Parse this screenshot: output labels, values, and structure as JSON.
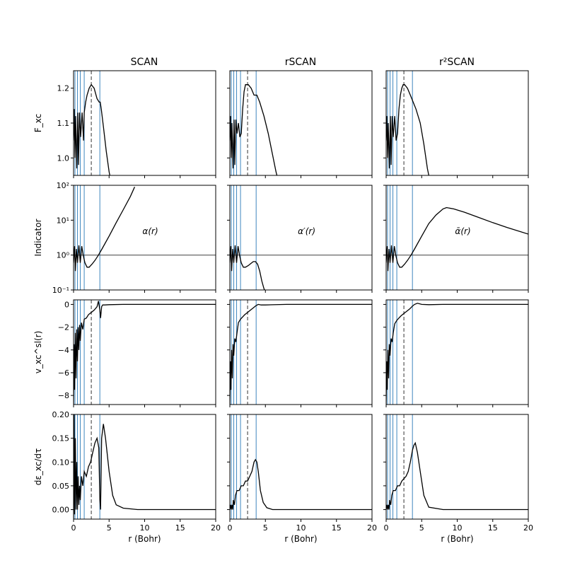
{
  "chart_data": {
    "type": "line",
    "columns": [
      "SCAN",
      "rSCAN",
      "r²SCAN"
    ],
    "shared_xlabel": "r (Bohr)",
    "xlim": [
      0,
      20
    ],
    "xticks": [
      0,
      5,
      10,
      15,
      20
    ],
    "dashed_marker_x": 2.5,
    "shell_lines_x": [
      0.2,
      0.55,
      0.95,
      1.5,
      3.7
    ],
    "rows": [
      {
        "ylabel": "F_xc",
        "ylim": [
          0.95,
          1.25
        ],
        "yticks": [
          {
            "v": 1.0,
            "label": "1.0"
          },
          {
            "v": 1.1,
            "label": "1.1"
          },
          {
            "v": 1.2,
            "label": "1.2"
          }
        ],
        "series": [
          {
            "name": "SCAN",
            "x": [
              0.0,
              0.1,
              0.2,
              0.3,
              0.45,
              0.6,
              0.7,
              0.85,
              1.0,
              1.2,
              1.4,
              1.5,
              1.7,
              1.9,
              2.2,
              2.5,
              2.9,
              3.3,
              3.6,
              3.75,
              3.9,
              4.2,
              4.6,
              5.0,
              5.3
            ],
            "y": [
              1.05,
              1.14,
              1.0,
              1.12,
              0.97,
              1.13,
              0.98,
              1.13,
              1.06,
              1.13,
              1.05,
              1.13,
              1.16,
              1.18,
              1.2,
              1.21,
              1.2,
              1.17,
              1.16,
              1.16,
              1.14,
              1.09,
              1.02,
              0.96,
              0.93
            ]
          },
          {
            "name": "rSCAN",
            "x": [
              0.0,
              0.1,
              0.2,
              0.3,
              0.45,
              0.6,
              0.7,
              0.85,
              1.0,
              1.2,
              1.4,
              1.6,
              1.8,
              2.0,
              2.2,
              2.4,
              2.6,
              3.0,
              3.4,
              3.8,
              4.2,
              4.8,
              5.4,
              6.0,
              6.5,
              7.0
            ],
            "y": [
              1.05,
              1.12,
              1.0,
              1.1,
              0.97,
              1.11,
              0.98,
              1.11,
              1.07,
              1.1,
              1.06,
              1.07,
              1.14,
              1.19,
              1.21,
              1.21,
              1.21,
              1.2,
              1.18,
              1.18,
              1.16,
              1.12,
              1.07,
              1.01,
              0.96,
              0.92
            ]
          },
          {
            "name": "r2SCAN",
            "x": [
              0.0,
              0.1,
              0.2,
              0.3,
              0.45,
              0.6,
              0.7,
              0.85,
              1.0,
              1.2,
              1.4,
              1.6,
              1.8,
              2.0,
              2.2,
              2.4,
              2.6,
              3.0,
              3.4,
              3.8,
              4.2,
              4.8,
              5.3,
              5.8,
              6.2
            ],
            "y": [
              1.05,
              1.12,
              1.0,
              1.1,
              0.97,
              1.12,
              0.98,
              1.12,
              1.06,
              1.12,
              1.05,
              1.07,
              1.14,
              1.18,
              1.2,
              1.21,
              1.21,
              1.2,
              1.18,
              1.16,
              1.14,
              1.1,
              1.04,
              0.97,
              0.93
            ]
          }
        ]
      },
      {
        "ylabel": "Indicator",
        "yscale": "log",
        "ylim": [
          0.1,
          100
        ],
        "yticks": [
          {
            "v": 0.1,
            "label": "10⁻¹"
          },
          {
            "v": 1,
            "label": "10⁰"
          },
          {
            "v": 10,
            "label": "10¹"
          },
          {
            "v": 100,
            "label": "10²"
          }
        ],
        "reference_line_y": 1,
        "annotations": [
          "α(r)",
          "α′(r)",
          "ᾱ(r)"
        ],
        "series": [
          {
            "name": "SCAN",
            "x": [
              0.0,
              0.15,
              0.25,
              0.4,
              0.55,
              0.75,
              0.95,
              1.15,
              1.35,
              1.6,
              1.9,
              2.2,
              2.6,
              3.0,
              3.5,
              4.0,
              5.0,
              6.0,
              7.0,
              8.0,
              8.6
            ],
            "y": [
              0.6,
              1.8,
              0.35,
              1.5,
              0.6,
              1.9,
              0.6,
              1.8,
              1.0,
              0.6,
              0.45,
              0.45,
              0.55,
              0.7,
              1.0,
              1.5,
              3.5,
              8.5,
              20,
              48,
              90
            ]
          },
          {
            "name": "rSCAN",
            "x": [
              0.0,
              0.15,
              0.25,
              0.4,
              0.55,
              0.75,
              0.95,
              1.15,
              1.35,
              1.6,
              1.9,
              2.2,
              2.6,
              3.0,
              3.3,
              3.6,
              3.9,
              4.2,
              4.5,
              4.8,
              5.1
            ],
            "y": [
              0.6,
              1.8,
              0.35,
              1.5,
              0.6,
              1.9,
              0.6,
              1.8,
              1.0,
              0.6,
              0.45,
              0.45,
              0.5,
              0.58,
              0.65,
              0.65,
              0.55,
              0.35,
              0.18,
              0.11,
              0.08
            ]
          },
          {
            "name": "r2SCAN",
            "x": [
              0.0,
              0.15,
              0.25,
              0.4,
              0.55,
              0.75,
              0.95,
              1.15,
              1.35,
              1.6,
              1.9,
              2.2,
              2.6,
              3.0,
              3.5,
              4.0,
              5.0,
              6.0,
              7.0,
              8.0,
              8.5,
              9.5,
              11,
              13,
              15,
              17,
              20
            ],
            "y": [
              0.6,
              1.8,
              0.35,
              1.5,
              0.6,
              1.9,
              0.6,
              1.8,
              1.0,
              0.6,
              0.45,
              0.45,
              0.55,
              0.7,
              1.0,
              1.5,
              3.5,
              8,
              14,
              21,
              23,
              21,
              17,
              12,
              8.5,
              6.2,
              4
            ]
          }
        ]
      },
      {
        "ylabel": "v_xc^sl(r)",
        "ylim": [
          -8.8,
          0.4
        ],
        "yticks": [
          {
            "v": 0,
            "label": "0"
          },
          {
            "v": -2,
            "label": "−2"
          },
          {
            "v": -4,
            "label": "−4"
          },
          {
            "v": -6,
            "label": "−6"
          },
          {
            "v": -8,
            "label": "−8"
          }
        ],
        "series": [
          {
            "name": "SCAN",
            "x": [
              0.0,
              0.08,
              0.15,
              0.25,
              0.35,
              0.45,
              0.55,
              0.65,
              0.75,
              0.85,
              0.95,
              1.1,
              1.3,
              1.5,
              1.8,
              2.1,
              2.5,
              2.9,
              3.3,
              3.5,
              3.7,
              3.8,
              3.95,
              4.1,
              4.4,
              5.0,
              7.0,
              20.0
            ],
            "y": [
              -8.8,
              -3.5,
              -7.5,
              -2.5,
              -6.5,
              -2.2,
              -5.0,
              -2.0,
              -4.0,
              -1.8,
              -3.2,
              -1.6,
              -2.2,
              -1.3,
              -1.2,
              -0.9,
              -0.7,
              -0.5,
              -0.2,
              0.3,
              -0.5,
              -1.2,
              -0.2,
              -0.05,
              -0.05,
              -0.02,
              0.0,
              0.0
            ]
          },
          {
            "name": "rSCAN",
            "x": [
              0.0,
              0.08,
              0.15,
              0.25,
              0.35,
              0.45,
              0.55,
              0.7,
              0.85,
              1.0,
              1.2,
              1.5,
              1.8,
              2.1,
              2.5,
              2.9,
              3.3,
              3.7,
              4.0,
              4.4,
              5.0,
              6.0,
              8.0,
              20.0
            ],
            "y": [
              -8.8,
              -5.0,
              -7.5,
              -4.0,
              -6.5,
              -3.5,
              -4.5,
              -3.0,
              -3.3,
              -2.5,
              -1.6,
              -1.3,
              -1.1,
              -0.9,
              -0.7,
              -0.5,
              -0.3,
              -0.1,
              0.0,
              -0.05,
              -0.05,
              -0.03,
              0.0,
              0.0
            ]
          },
          {
            "name": "r2SCAN",
            "x": [
              0.0,
              0.08,
              0.15,
              0.25,
              0.35,
              0.45,
              0.55,
              0.7,
              0.85,
              1.0,
              1.2,
              1.5,
              1.8,
              2.1,
              2.5,
              2.9,
              3.3,
              3.7,
              4.0,
              4.4,
              5.0,
              6.0,
              8.0,
              20.0
            ],
            "y": [
              -8.8,
              -5.0,
              -7.5,
              -4.0,
              -6.5,
              -3.5,
              -4.5,
              -3.0,
              -3.3,
              -2.5,
              -1.7,
              -1.4,
              -1.2,
              -1.0,
              -0.8,
              -0.6,
              -0.4,
              -0.15,
              0.0,
              0.1,
              0.0,
              -0.02,
              0.0,
              0.0
            ]
          }
        ]
      },
      {
        "ylabel": "dε_xc/dτ",
        "ylim": [
          -0.02,
          0.2
        ],
        "yticks": [
          {
            "v": 0.0,
            "label": "0.00"
          },
          {
            "v": 0.05,
            "label": "0.05"
          },
          {
            "v": 0.1,
            "label": "0.10"
          },
          {
            "v": 0.15,
            "label": "0.15"
          },
          {
            "v": 0.2,
            "label": "0.20"
          }
        ],
        "series": [
          {
            "name": "SCAN",
            "x": [
              0.0,
              0.08,
              0.15,
              0.25,
              0.35,
              0.45,
              0.55,
              0.65,
              0.75,
              0.85,
              0.95,
              1.1,
              1.3,
              1.5,
              1.8,
              2.1,
              2.4,
              2.7,
              3.0,
              3.3,
              3.55,
              3.7,
              3.8,
              3.95,
              4.2,
              4.5,
              5.0,
              5.5,
              6.0,
              7.0,
              9.0,
              20.0
            ],
            "y": [
              -0.02,
              0.2,
              -0.01,
              0.15,
              0.0,
              0.1,
              0.0,
              0.07,
              0.01,
              0.05,
              0.02,
              0.07,
              0.05,
              0.08,
              0.07,
              0.09,
              0.1,
              0.12,
              0.14,
              0.15,
              0.13,
              0.02,
              0.0,
              0.15,
              0.18,
              0.15,
              0.08,
              0.03,
              0.01,
              0.003,
              0.0,
              0.0
            ]
          },
          {
            "name": "rSCAN",
            "x": [
              0.0,
              0.1,
              0.2,
              0.3,
              0.4,
              0.5,
              0.65,
              0.8,
              1.0,
              1.3,
              1.6,
              1.9,
              2.2,
              2.5,
              2.8,
              3.1,
              3.4,
              3.6,
              3.8,
              4.0,
              4.3,
              4.7,
              5.2,
              6.0,
              8.0,
              20.0
            ],
            "y": [
              0.0,
              0.01,
              0.0,
              0.01,
              0.0,
              0.02,
              0.01,
              0.03,
              0.04,
              0.04,
              0.05,
              0.05,
              0.06,
              0.06,
              0.07,
              0.08,
              0.1,
              0.105,
              0.1,
              0.08,
              0.04,
              0.015,
              0.004,
              0.0,
              0.0,
              0.0
            ]
          },
          {
            "name": "r2SCAN",
            "x": [
              0.0,
              0.1,
              0.2,
              0.3,
              0.4,
              0.5,
              0.65,
              0.8,
              1.0,
              1.3,
              1.6,
              1.9,
              2.2,
              2.5,
              2.8,
              3.1,
              3.4,
              3.7,
              3.9,
              4.1,
              4.4,
              4.8,
              5.3,
              6.0,
              8.0,
              20.0
            ],
            "y": [
              0.0,
              0.01,
              0.0,
              0.01,
              0.0,
              0.02,
              0.01,
              0.03,
              0.04,
              0.04,
              0.05,
              0.05,
              0.06,
              0.065,
              0.07,
              0.08,
              0.1,
              0.125,
              0.135,
              0.14,
              0.12,
              0.08,
              0.03,
              0.005,
              0.0,
              0.0
            ]
          }
        ]
      }
    ]
  }
}
